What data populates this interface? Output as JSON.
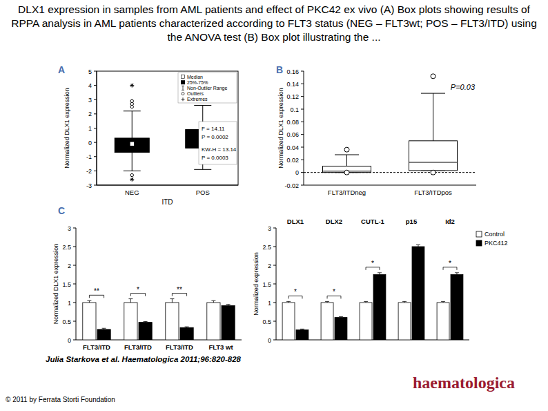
{
  "page": {
    "title": "DLX1 expression in samples from AML patients and effect of PKC42 ex vivo (A) Box plots showing results of RPPA analysis in AML patients characterized according to FLT3 status (NEG – FLT3wt; POS – FLT3/ITD) using the ANOVA test (B) Box plot illustrating the ...",
    "citation": "Julia Starkova et al. Haematologica 2011;96:820-828",
    "copyright": "© 2011 by Ferrata Storti Foundation",
    "logo": "haematologica"
  },
  "chart_data": [
    {
      "type": "box",
      "panel": "A",
      "categories": [
        "NEG",
        "POS"
      ],
      "xlabel": "ITD",
      "ylabel": "Normalized DLX1 expression",
      "ylim": [
        -3,
        5
      ],
      "yticks": [
        -3,
        -2,
        -1,
        0,
        1,
        2,
        3,
        4,
        5
      ],
      "boxes": [
        {
          "whisker_low": -2,
          "q1": -0.7,
          "median": -0.1,
          "q3": 0.3,
          "whisker_high": 2.2,
          "outliers": [
            2.5,
            2.7,
            2.9,
            -2.3
          ],
          "extremes": [
            4,
            -2.6
          ]
        },
        {
          "whisker_low": -1.9,
          "q1": -0.4,
          "median": 0.15,
          "q3": 0.9,
          "whisker_high": 2.6,
          "outliers": [],
          "extremes": []
        }
      ],
      "legend_entries": [
        "Median",
        "25%-75%",
        "Non-Outlier Range",
        "Outliers",
        "Extremes"
      ],
      "annotations": [
        "F = 14.11",
        "P = 0.0002",
        "KW-H = 13.14",
        "P = 0.0003"
      ]
    },
    {
      "type": "box",
      "panel": "B",
      "categories": [
        "FLT3/ITDneg",
        "FLT3/ITDpos"
      ],
      "ylabel": "Normalized DLX1 expression",
      "ylim": [
        -0.02,
        0.16
      ],
      "yticks": [
        -0.02,
        0,
        0.02,
        0.04,
        0.06,
        0.08,
        0.1,
        0.12,
        0.14,
        0.16
      ],
      "ref_line": 0,
      "boxes": [
        {
          "whisker_low": 0,
          "q1": 0,
          "median": 0.002,
          "q3": 0.01,
          "whisker_high": 0.028,
          "outliers": [
            0.036,
            0
          ],
          "extremes": []
        },
        {
          "whisker_low": 0.003,
          "q1": 0.003,
          "median": 0.016,
          "q3": 0.05,
          "whisker_high": 0.125,
          "outliers": [
            0.152,
            0
          ],
          "extremes": []
        }
      ],
      "annotations": [
        "P=0.03"
      ]
    },
    {
      "type": "bar",
      "panel": "C",
      "categories": [
        "FLT3/ITD",
        "FLT3/ITD",
        "FLT3/ITD",
        "FLT3 wt"
      ],
      "ylabel": "Normalized DLX1 expression",
      "ylim": [
        0,
        3
      ],
      "yticks": [
        0,
        0.5,
        1,
        1.5,
        2,
        2.5,
        3
      ],
      "series": [
        {
          "color": "#ffffff",
          "values": [
            1,
            1,
            1,
            1
          ],
          "errors": [
            0.05,
            0.1,
            0.1,
            0.05
          ]
        },
        {
          "color": "#000000",
          "values": [
            0.28,
            0.47,
            0.33,
            0.92
          ],
          "errors": [
            0.03,
            0.02,
            0.02,
            0.03
          ]
        }
      ],
      "significance": [
        "**",
        "*",
        "**",
        null
      ]
    },
    {
      "type": "bar",
      "categories": [
        "DLX1",
        "DLX2",
        "CUTL-1",
        "p15",
        "Id2"
      ],
      "ylabel": "Normalized expression",
      "ylim": [
        0,
        3
      ],
      "yticks": [
        0,
        0.5,
        1,
        1.5,
        2,
        2.5,
        3
      ],
      "legend": "right",
      "series": [
        {
          "name": "Control",
          "color": "#ffffff",
          "values": [
            1,
            1,
            1,
            1,
            1
          ],
          "errors": [
            0.03,
            0.03,
            0.03,
            0.03,
            0.03
          ]
        },
        {
          "name": "PKC412",
          "color": "#000000",
          "values": [
            0.27,
            0.6,
            1.75,
            2.5,
            1.75
          ],
          "errors": [
            0.02,
            0.02,
            0.05,
            0.05,
            0.05
          ]
        }
      ],
      "significance": [
        "*",
        "*",
        "*",
        null,
        "*"
      ]
    }
  ]
}
